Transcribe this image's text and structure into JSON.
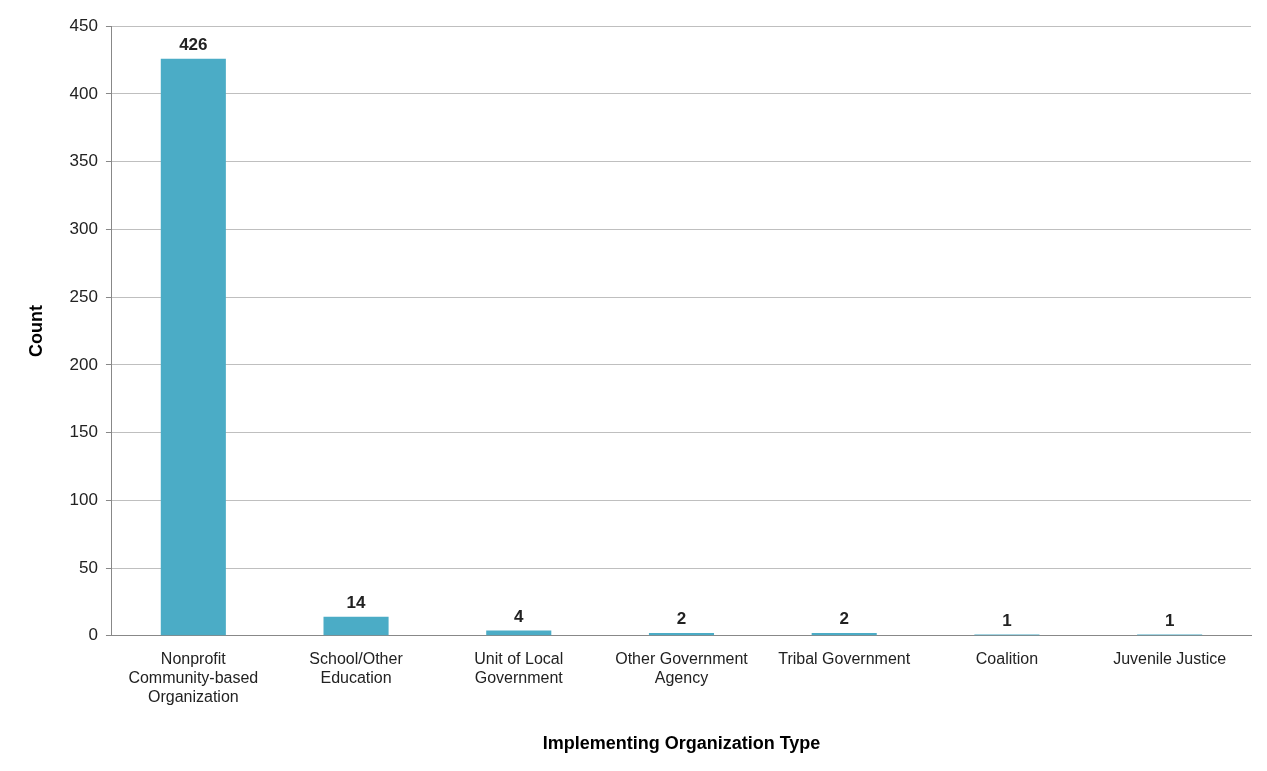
{
  "chart_data": {
    "type": "bar",
    "xlabel": "Implementing Organization Type",
    "ylabel": "Count",
    "categories": [
      "Nonprofit Community-based Organization",
      "School/Other Education",
      "Unit of Local Government",
      "Other Government Agency",
      "Tribal Government",
      "Coalition",
      "Juvenile Justice"
    ],
    "values": [
      426,
      14,
      4,
      2,
      2,
      1,
      1
    ],
    "color": "#4bacc6",
    "ylim": [
      0,
      450
    ],
    "yticks": [
      0,
      50,
      100,
      150,
      200,
      250,
      300,
      350,
      400,
      450
    ],
    "grid": "y",
    "data_labels": true,
    "legend": false
  }
}
